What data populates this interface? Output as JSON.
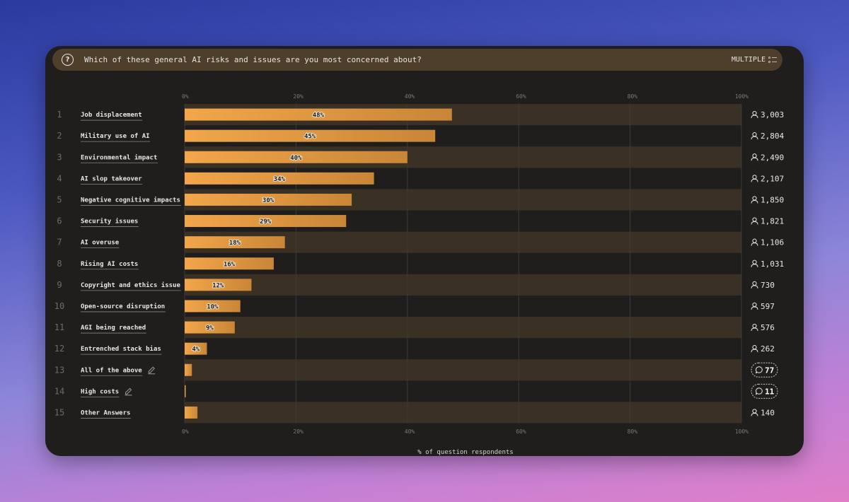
{
  "question": {
    "text": "Which of these general AI risks and issues are you most concerned about?",
    "mode": "MULTIPLE"
  },
  "colors": {
    "bar_start": "#f3a64a",
    "bar_end": "#c98637",
    "band": "#3a3024",
    "card": "#1f1e1d"
  },
  "chart_data": {
    "type": "bar",
    "orientation": "horizontal",
    "xlim": [
      0,
      100
    ],
    "xticks": [
      "0%",
      "20%",
      "40%",
      "60%",
      "80%",
      "100%"
    ],
    "xlabel": "% of question respondents",
    "grid": true,
    "categories": [
      "Job displacement",
      "Military use of AI",
      "Environmental impact",
      "AI slop takeover",
      "Negative cognitive impacts",
      "Security issues",
      "AI overuse",
      "Rising AI costs",
      "Copyright and ethics issue",
      "Open-source disruption",
      "AGI being reached",
      "Entrenched stack bias",
      "All of the above",
      "High costs",
      "Other Answers"
    ],
    "values": [
      48,
      45,
      40,
      34,
      30,
      29,
      18,
      16,
      12,
      10,
      9,
      4,
      1.3,
      0.2,
      2.3
    ],
    "value_labels": [
      "48%",
      "45%",
      "40%",
      "34%",
      "30%",
      "29%",
      "18%",
      "16%",
      "12%",
      "10%",
      "9%",
      "4%",
      "",
      "",
      ""
    ],
    "counts": [
      "3,003",
      "2,804",
      "2,490",
      "2,107",
      "1,850",
      "1,821",
      "1,106",
      "1,031",
      "730",
      "597",
      "576",
      "262",
      "77",
      "11",
      "140"
    ],
    "count_kind": [
      "person",
      "person",
      "person",
      "person",
      "person",
      "person",
      "person",
      "person",
      "person",
      "person",
      "person",
      "person",
      "comment",
      "comment",
      "person"
    ],
    "editable": [
      false,
      false,
      false,
      false,
      false,
      false,
      false,
      false,
      false,
      false,
      false,
      false,
      true,
      true,
      false
    ]
  }
}
